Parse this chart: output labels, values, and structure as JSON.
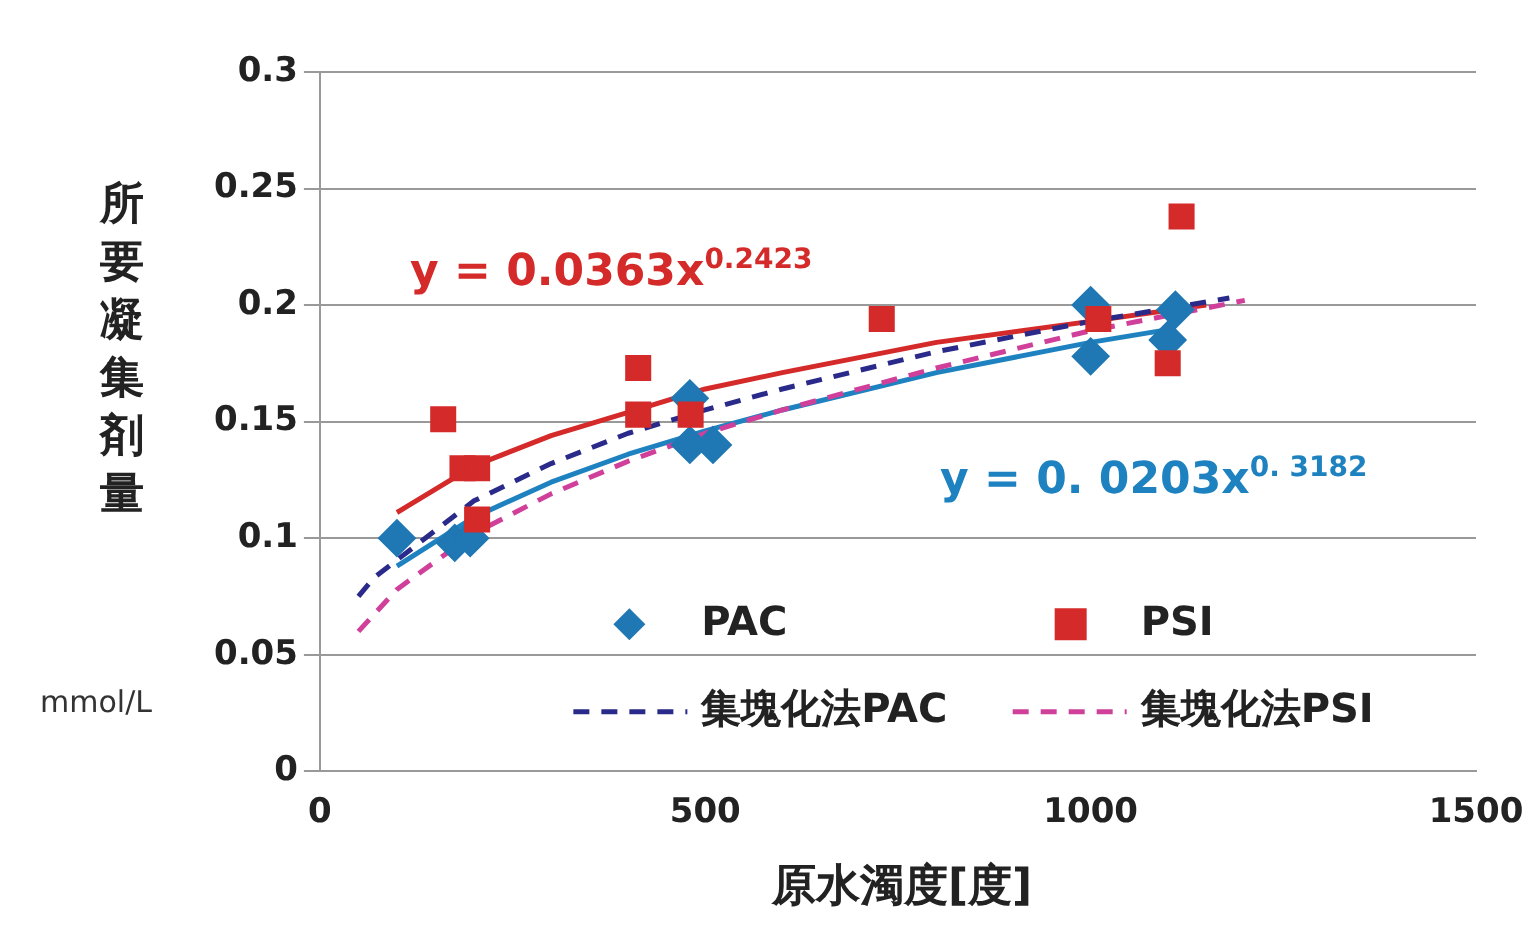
{
  "chart_data": {
    "type": "scatter",
    "xlabel": "原水濁度[度]",
    "ylabel": "所要凝集剤量",
    "xlim": [
      0,
      1500
    ],
    "xticks": [
      0,
      500,
      1000,
      1500
    ],
    "ylim": [
      0,
      0.3
    ],
    "yticks": [
      0,
      0.05,
      0.1,
      0.15,
      0.2,
      0.25,
      0.3
    ],
    "grid": "y",
    "legend": "bottom",
    "annotations": [
      "y = 0.0363x$^{0.2423}$",
      "y = 0. 0203x$^{0. 3182}$",
      "mmol/L"
    ],
    "series": [
      {
        "name": "PAC",
        "marker": "diamond",
        "color": "#1f77b4",
        "x": [
          100,
          175,
          195,
          480,
          480,
          510,
          1000,
          1000,
          1100,
          1110
        ],
        "values": [
          0.1,
          0.098,
          0.1,
          0.16,
          0.14,
          0.14,
          0.178,
          0.2,
          0.185,
          0.198
        ]
      },
      {
        "name": "PSI",
        "marker": "square",
        "color": "#d42a2a",
        "x": [
          160,
          185,
          204,
          204,
          413,
          413,
          481,
          729,
          1010,
          1100,
          1118
        ],
        "values": [
          0.151,
          0.13,
          0.13,
          0.108,
          0.173,
          0.153,
          0.153,
          0.194,
          0.194,
          0.175,
          0.238
        ]
      },
      {
        "type": "line",
        "marker": "none",
        "color": "#d42a2a",
        "x": [
          100,
          200,
          300,
          400,
          500,
          600,
          800,
          1000,
          1150
        ],
        "values": [
          0.111,
          0.131,
          0.144,
          0.154,
          0.164,
          0.171,
          0.184,
          0.193,
          0.2
        ]
      },
      {
        "type": "line",
        "marker": "none",
        "color": "#1f82c0",
        "x": [
          100,
          200,
          300,
          400,
          500,
          600,
          800,
          1000,
          1110
        ],
        "values": [
          0.088,
          0.109,
          0.124,
          0.136,
          0.146,
          0.155,
          0.171,
          0.184,
          0.19
        ]
      },
      {
        "name": "集塊化法PAC",
        "type": "line",
        "marker": "none",
        "line_style": "dashed",
        "color": "#2a2a8a",
        "x": [
          50,
          70,
          200,
          300,
          400,
          500,
          600,
          800,
          1000,
          1180
        ],
        "values": [
          0.075,
          0.083,
          0.116,
          0.132,
          0.145,
          0.155,
          0.164,
          0.18,
          0.193,
          0.203
        ]
      },
      {
        "name": "集塊化法PSI",
        "type": "line",
        "marker": "none",
        "line_style": "dashed",
        "color": "#d0409a",
        "x": [
          50,
          100,
          200,
          300,
          400,
          500,
          600,
          800,
          1000,
          1200
        ],
        "values": [
          0.06,
          0.078,
          0.102,
          0.119,
          0.133,
          0.145,
          0.155,
          0.173,
          0.189,
          0.202
        ]
      }
    ]
  }
}
